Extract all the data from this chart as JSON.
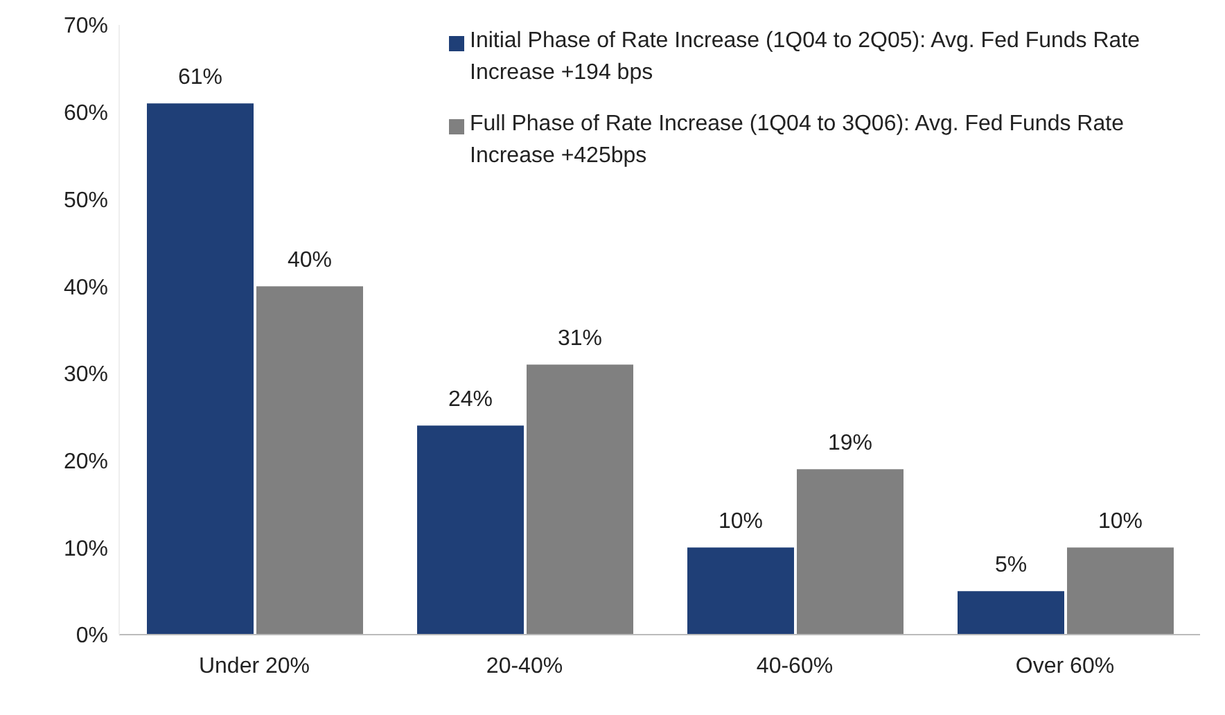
{
  "chart_data": {
    "type": "bar",
    "categories": [
      "Under 20%",
      "20-40%",
      "40-60%",
      "Over 60%"
    ],
    "series": [
      {
        "name": "Initial Phase of Rate Increase (1Q04 to 2Q05): Avg. Fed Funds Rate Increase +194 bps",
        "color": "#1f3f77",
        "values": [
          61,
          24,
          10,
          5
        ],
        "value_labels": [
          "61%",
          "24%",
          "10%",
          "5%"
        ]
      },
      {
        "name": "Full Phase of Rate Increase (1Q04 to 3Q06): Avg. Fed Funds Rate Increase +425bps",
        "color": "#808080",
        "values": [
          40,
          31,
          19,
          10
        ],
        "value_labels": [
          "40%",
          "31%",
          "19%",
          "10%"
        ]
      }
    ],
    "ylim": [
      0,
      70
    ],
    "yticks": [
      {
        "value": 0,
        "label": "0%"
      },
      {
        "value": 10,
        "label": "10%"
      },
      {
        "value": 20,
        "label": "20%"
      },
      {
        "value": 30,
        "label": "30%"
      },
      {
        "value": 40,
        "label": "40%"
      },
      {
        "value": 50,
        "label": "50%"
      },
      {
        "value": 60,
        "label": "60%"
      },
      {
        "value": 70,
        "label": "70%"
      }
    ],
    "grid": false,
    "legend": "top right"
  }
}
